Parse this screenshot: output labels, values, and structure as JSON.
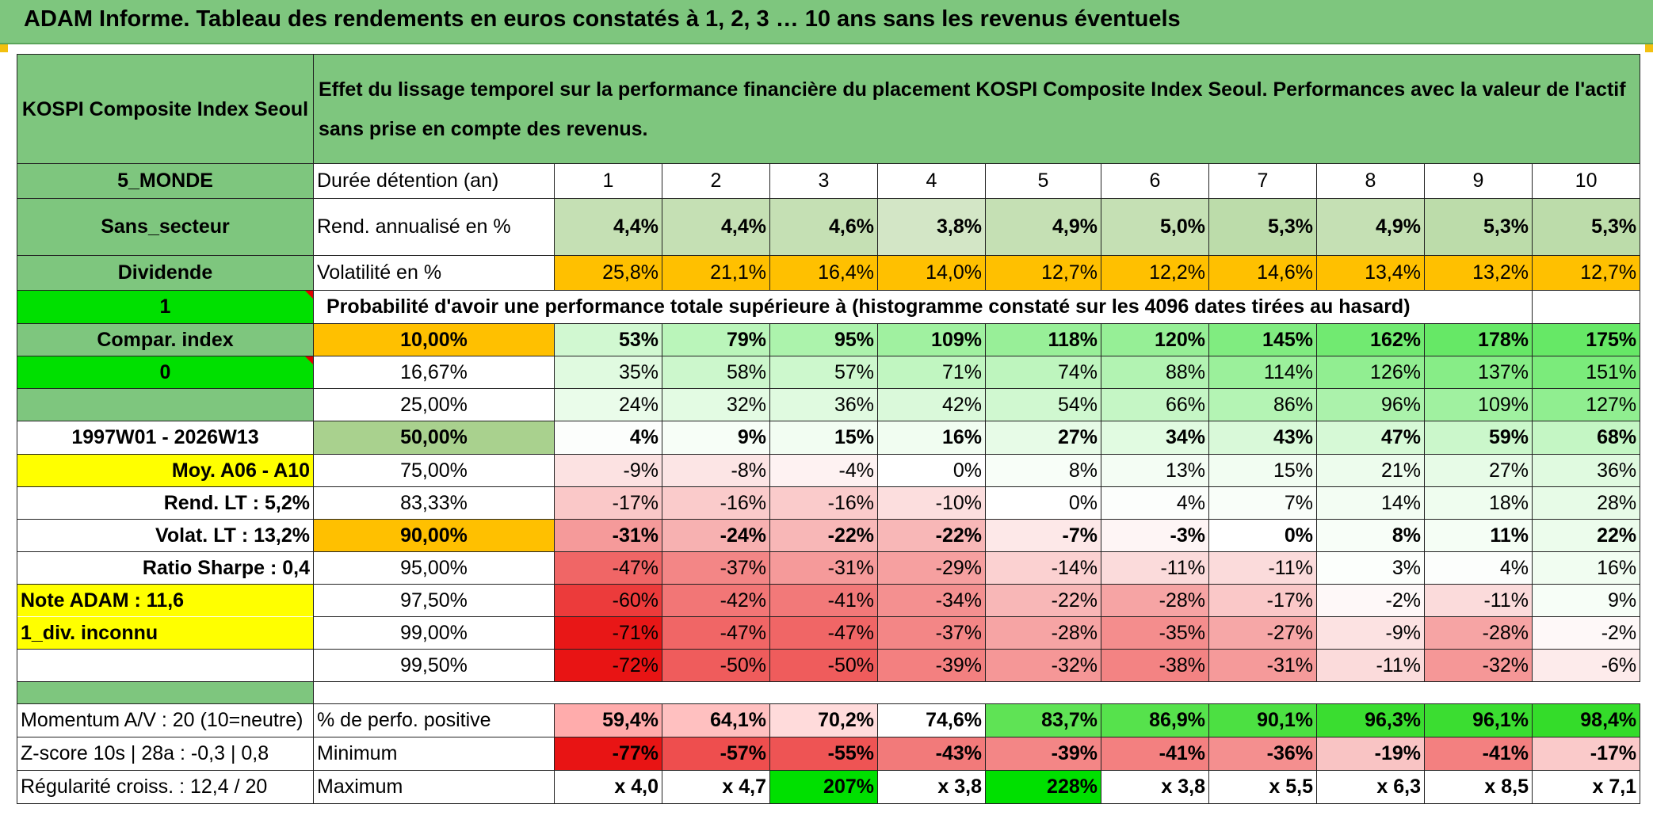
{
  "title": "ADAM Informe. Tableau des rendements en euros constatés à 1, 2, 3 … 10 ans sans les revenus éventuels",
  "header": {
    "name": "KOSPI Composite Index Seoul",
    "description": "Effet du lissage temporel sur la performance financière du placement KOSPI Composite Index Seoul. Performances avec la valeur de l'actif sans prise en compte des revenus."
  },
  "side": {
    "region": "5_MONDE",
    "sector": "Sans_secteur",
    "dividend": "Dividende",
    "flag1": "1",
    "compar": "Compar. index",
    "flag0": "0",
    "period": "1997W01 - 2026W13",
    "moy": "Moy. A06 - A10",
    "rend_label": "Rend. LT :",
    "rend_value": "5,2%",
    "volat_label": "Volat. LT :",
    "volat_value": "13,2%",
    "sharpe_label": "Ratio Sharpe :",
    "sharpe_value": "0,4",
    "note": "Note ADAM : 11,6",
    "div": "1_div. inconnu",
    "momentum": "Momentum A/V : 20 (10=neutre)",
    "zscore": "Z-score 10s | 28a : -0,3 | 0,8",
    "regularite": "Régularité croiss. : 12,4 / 20"
  },
  "labels": {
    "duree": "Durée détention (an)",
    "rend": "Rend. annualisé en %",
    "volat": "Volatilité en %",
    "proba": "Probabilité d'avoir une performance totale supérieure à (histogramme constaté sur les 4096 dates tirées au hasard)",
    "positive": "% de perfo. positive",
    "minimum": "Minimum",
    "maximum": "Maximum"
  },
  "years": [
    "1",
    "2",
    "3",
    "4",
    "5",
    "6",
    "7",
    "8",
    "9",
    "10"
  ],
  "rend": [
    "4,4%",
    "4,4%",
    "4,6%",
    "3,8%",
    "4,9%",
    "5,0%",
    "5,3%",
    "4,9%",
    "5,3%",
    "5,3%"
  ],
  "volat": [
    "25,8%",
    "21,1%",
    "16,4%",
    "14,0%",
    "12,7%",
    "12,2%",
    "14,6%",
    "13,4%",
    "13,2%",
    "12,7%"
  ],
  "prob_rows": [
    {
      "p": "10,00%",
      "v": [
        "53%",
        "79%",
        "95%",
        "109%",
        "118%",
        "120%",
        "145%",
        "162%",
        "178%",
        "175%"
      ]
    },
    {
      "p": "16,67%",
      "v": [
        "35%",
        "58%",
        "57%",
        "71%",
        "74%",
        "88%",
        "114%",
        "126%",
        "137%",
        "151%"
      ]
    },
    {
      "p": "25,00%",
      "v": [
        "24%",
        "32%",
        "36%",
        "42%",
        "54%",
        "66%",
        "86%",
        "96%",
        "109%",
        "127%"
      ]
    },
    {
      "p": "50,00%",
      "v": [
        "4%",
        "9%",
        "15%",
        "16%",
        "27%",
        "34%",
        "43%",
        "47%",
        "59%",
        "68%"
      ]
    },
    {
      "p": "75,00%",
      "v": [
        "-9%",
        "-8%",
        "-4%",
        "0%",
        "8%",
        "13%",
        "15%",
        "21%",
        "27%",
        "36%"
      ]
    },
    {
      "p": "83,33%",
      "v": [
        "-17%",
        "-16%",
        "-16%",
        "-10%",
        "0%",
        "4%",
        "7%",
        "14%",
        "18%",
        "28%"
      ]
    },
    {
      "p": "90,00%",
      "v": [
        "-31%",
        "-24%",
        "-22%",
        "-22%",
        "-7%",
        "-3%",
        "0%",
        "8%",
        "11%",
        "22%"
      ]
    },
    {
      "p": "95,00%",
      "v": [
        "-47%",
        "-37%",
        "-31%",
        "-29%",
        "-14%",
        "-11%",
        "-11%",
        "3%",
        "4%",
        "16%"
      ]
    },
    {
      "p": "97,50%",
      "v": [
        "-60%",
        "-42%",
        "-41%",
        "-34%",
        "-22%",
        "-28%",
        "-17%",
        "-2%",
        "-11%",
        "9%"
      ]
    },
    {
      "p": "99,00%",
      "v": [
        "-71%",
        "-47%",
        "-47%",
        "-37%",
        "-28%",
        "-35%",
        "-27%",
        "-9%",
        "-28%",
        "-2%"
      ]
    },
    {
      "p": "99,50%",
      "v": [
        "-72%",
        "-50%",
        "-50%",
        "-39%",
        "-32%",
        "-38%",
        "-31%",
        "-11%",
        "-32%",
        "-6%"
      ]
    }
  ],
  "positive": [
    "59,4%",
    "64,1%",
    "70,2%",
    "74,6%",
    "83,7%",
    "86,9%",
    "90,1%",
    "96,3%",
    "96,1%",
    "98,4%"
  ],
  "minimum": [
    "-77%",
    "-57%",
    "-55%",
    "-43%",
    "-39%",
    "-41%",
    "-36%",
    "-19%",
    "-41%",
    "-17%"
  ],
  "maximum": [
    "x 4,0",
    "x 4,7",
    "207%",
    "x 3,8",
    "228%",
    "x 3,8",
    "x 5,5",
    "x 6,3",
    "x 8,5",
    "x 7,1"
  ],
  "colors": {
    "header_green": "#7ec67e",
    "bright_green": "#00e000",
    "yellow": "#ffff00",
    "orange": "#ffc000",
    "red_text": "#d40000"
  }
}
